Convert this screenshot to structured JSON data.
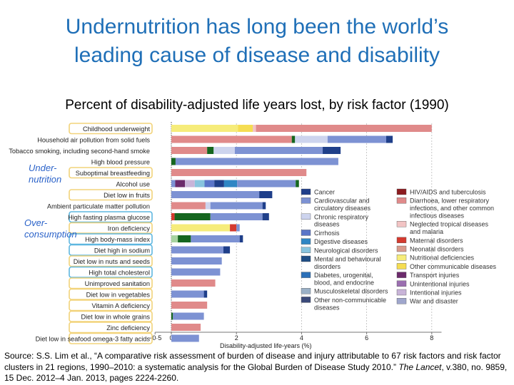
{
  "title_line1": "Undernutrition has long been the world’s",
  "title_line2": "leading cause of disease and disability",
  "subtitle": "Percent of disability-adjusted life years lost, by risk factor (1990)",
  "group_labels": {
    "undernutrition": "Under-\nnutrition",
    "overconsumption": "Over-\nconsumption"
  },
  "source": {
    "part1": "Source: S.S. Lim et al., “A comparative risk assessment of burden of disease and injury attributable to 67 risk factors and risk factor clusters in 21 regions, 1990–2010: a systematic analysis for the Global Burden of Disease Study 2010.”",
    "journal": "The Lancet",
    "part2": ", v.380, no. 9859, 15 Dec. 2012–4 Jan. 2013, pages 2224-2260."
  },
  "colors": {
    "Cancer": "#1f3f8a",
    "Cardiovascular and circulatory diseases": "#7d92d3",
    "Chronic respiratory diseases": "#cdd4ee",
    "Cirrhosis": "#5a75c8",
    "Digestive diseases": "#2f86c4",
    "Neurological disorders": "#88c4de",
    "Mental and behavioural disorders": "#1f4e85",
    "Diabetes, urogenital, blood, and endocrine": "#2c70b8",
    "Musculoskeletal disorders": "#9ab0c6",
    "Other non-communicable diseases": "#3b4a7a",
    "HIV/AIDS and tuberculosis": "#8c1c20",
    "Diarrhoea, lower respiratory infections, and other common infectious diseases": "#e08a8a",
    "Neglected tropical diseases and malaria": "#f2c4c4",
    "Maternal disorders": "#d43a2f",
    "Neonatal disorders": "#d99b8d",
    "Nutritional deficiencies": "#f6ec7a",
    "Other communicable diseases": "#f5dd52",
    "Transport injuries": "#6b2a6b",
    "Unintentional injuries": "#9b6fb0",
    "Intentional injuries": "#c8b4d8",
    "War and disaster": "#9fa6cc",
    "Undernutrition-dark": "#15661f",
    "Undernutrition-light": "#a7d3a0",
    "highlight_under": "#f2d37a",
    "highlight_over": "#5fb7e0",
    "group_text": "#2a62c9"
  },
  "chart_data": {
    "type": "bar",
    "orientation": "horizontal-stacked",
    "title": "Percent of disability-adjusted life years lost, by risk factor (1990)",
    "xlabel": "Disability-adjusted life-years (%)",
    "ylabel": "",
    "xlim": [
      -0.5,
      8.5
    ],
    "xticks": [
      -0.5,
      0,
      2,
      4,
      6,
      8
    ],
    "xtick_labels": [
      "−0·5",
      "0",
      "2",
      "4",
      "6",
      "8"
    ],
    "categories": [
      "Childhood underweight",
      "Household air pollution from solid fuels",
      "Tobacco smoking, including second-hand smoke",
      "High blood pressure",
      "Suboptimal breastfeeding",
      "Alcohol use",
      "Diet low in fruits",
      "Ambient particulate matter pollution",
      "High fasting plasma glucose",
      "Iron deficiency",
      "High body-mass index",
      "Diet high in sodium",
      "Diet low in nuts and seeds",
      "High total cholesterol",
      "Unimproved sanitation",
      "Diet low in vegetables",
      "Vitamin A deficiency",
      "Diet low in whole grains",
      "Zinc deficiency",
      "Diet low in seafood omega-3 fatty acids"
    ],
    "group_under": [
      "Childhood underweight",
      "Suboptimal breastfeeding",
      "Diet low in fruits",
      "Iron deficiency",
      "Diet low in nuts and seeds",
      "Unimproved sanitation",
      "Diet low in vegetables",
      "Vitamin A deficiency",
      "Diet low in whole grains",
      "Zinc deficiency",
      "Diet low in seafood omega-3 fatty acids"
    ],
    "group_over": [
      "High fasting plasma glucose",
      "High body-mass index",
      "Diet high in sodium",
      "High total cholesterol"
    ],
    "bars": [
      [
        [
          "Nutritional deficiencies",
          2.05
        ],
        [
          "Other communicable diseases",
          0.45
        ],
        [
          "Neglected tropical diseases and malaria",
          0.1
        ],
        [
          "Diarrhoea, lower respiratory infections, and other common infectious diseases",
          5.4
        ]
      ],
      [
        [
          "Diarrhoea, lower respiratory infections, and other common infectious diseases",
          3.7
        ],
        [
          "Undernutrition-dark",
          0.1
        ],
        [
          "Chronic respiratory diseases",
          1.0
        ],
        [
          "Cardiovascular and circulatory diseases",
          1.8
        ],
        [
          "Cancer",
          0.2
        ]
      ],
      [
        [
          "Diarrhoea, lower respiratory infections, and other common infectious diseases",
          1.1
        ],
        [
          "Undernutrition-dark",
          0.2
        ],
        [
          "Chronic respiratory diseases",
          0.65
        ],
        [
          "Cardiovascular and circulatory diseases",
          2.7
        ],
        [
          "Cancer",
          0.55
        ]
      ],
      [
        [
          "Undernutrition-dark",
          0.13
        ],
        [
          "Cardiovascular and circulatory diseases",
          5.0
        ]
      ],
      [
        [
          "Diarrhoea, lower respiratory infections, and other common infectious diseases",
          4.15
        ]
      ],
      [
        [
          "Cardiovascular and circulatory diseases",
          0.12
        ],
        [
          "Transport injuries",
          0.3
        ],
        [
          "Intentional injuries",
          0.3
        ],
        [
          "Neurological disorders",
          0.3
        ],
        [
          "Cirrhosis",
          0.3
        ],
        [
          "Cancer",
          0.3
        ],
        [
          "Digestive diseases",
          0.4
        ],
        [
          "Cardiovascular and circulatory diseases",
          1.8
        ],
        [
          "Undernutrition-dark",
          0.1
        ]
      ],
      [
        [
          "Cardiovascular and circulatory diseases",
          2.7
        ],
        [
          "Cancer",
          0.4
        ]
      ],
      [
        [
          "Diarrhoea, lower respiratory infections, and other common infectious diseases",
          1.05
        ],
        [
          "Chronic respiratory diseases",
          0.15
        ],
        [
          "Cardiovascular and circulatory diseases",
          1.6
        ],
        [
          "Cancer",
          0.1
        ]
      ],
      [
        [
          "Maternal disorders",
          0.1
        ],
        [
          "Undernutrition-dark",
          1.1
        ],
        [
          "Cardiovascular and circulatory diseases",
          1.6
        ],
        [
          "Cancer",
          0.2
        ]
      ],
      [
        [
          "Nutritional deficiencies",
          1.8
        ],
        [
          "Maternal disorders",
          0.2
        ],
        [
          "Cardiovascular and circulatory diseases",
          0.1
        ]
      ],
      [
        [
          "Undernutrition-light",
          0.2
        ],
        [
          "Undernutrition-dark",
          0.4
        ],
        [
          "Cardiovascular and circulatory diseases",
          1.5
        ],
        [
          "Cancer",
          0.1
        ]
      ],
      [
        [
          "Cardiovascular and circulatory diseases",
          1.6
        ],
        [
          "Cancer",
          0.2
        ]
      ],
      [
        [
          "Cardiovascular and circulatory diseases",
          1.55
        ]
      ],
      [
        [
          "Cardiovascular and circulatory diseases",
          1.5
        ]
      ],
      [
        [
          "Diarrhoea, lower respiratory infections, and other common infectious diseases",
          1.35
        ]
      ],
      [
        [
          "Cardiovascular and circulatory diseases",
          1.0
        ],
        [
          "Cancer",
          0.1
        ]
      ],
      [
        [
          "Diarrhoea, lower respiratory infections, and other common infectious diseases",
          1.1
        ]
      ],
      [
        [
          "Undernutrition-dark",
          0.05
        ],
        [
          "Cardiovascular and circulatory diseases",
          0.95
        ]
      ],
      [
        [
          "Diarrhoea, lower respiratory infections, and other common infectious diseases",
          0.9
        ]
      ],
      [
        [
          "Cardiovascular and circulatory diseases",
          0.85
        ]
      ]
    ],
    "legend_left": [
      [
        "Cancer"
      ],
      [
        "Cardiovascular and",
        "circulatory diseases"
      ],
      [
        "Chronic respiratory",
        "diseases"
      ],
      [
        "Cirrhosis"
      ],
      [
        "Digestive diseases"
      ],
      [
        "Neurological disorders"
      ],
      [
        "Mental and behavioural",
        "disorders"
      ],
      [
        "Diabetes, urogenital,",
        "blood, and endocrine"
      ],
      [
        "Musculoskeletal disorders"
      ],
      [
        "Other non-communicable",
        "diseases"
      ]
    ],
    "legend_left_keys": [
      "Cancer",
      "Cardiovascular and circulatory diseases",
      "Chronic respiratory diseases",
      "Cirrhosis",
      "Digestive diseases",
      "Neurological disorders",
      "Mental and behavioural disorders",
      "Diabetes, urogenital, blood, and endocrine",
      "Musculoskeletal disorders",
      "Other non-communicable diseases"
    ],
    "legend_right": [
      [
        "HIV/AIDS and tuberculosis"
      ],
      [
        "Diarrhoea, lower respiratory",
        "infections, and other common",
        "infectious diseases"
      ],
      [
        "Neglected tropical diseases",
        "and malaria"
      ],
      [
        "Maternal disorders"
      ],
      [
        "Neonatal disorders"
      ],
      [
        "Nutritional deficiencies"
      ],
      [
        "Other communicable diseases"
      ],
      [
        "Transport injuries"
      ],
      [
        "Unintentional injuries"
      ],
      [
        "Intentional injuries"
      ],
      [
        "War and disaster"
      ]
    ],
    "legend_right_keys": [
      "HIV/AIDS and tuberculosis",
      "Diarrhoea, lower respiratory infections, and other common infectious diseases",
      "Neglected tropical diseases and malaria",
      "Maternal disorders",
      "Neonatal disorders",
      "Nutritional deficiencies",
      "Other communicable diseases",
      "Transport injuries",
      "Unintentional injuries",
      "Intentional injuries",
      "War and disaster"
    ]
  }
}
